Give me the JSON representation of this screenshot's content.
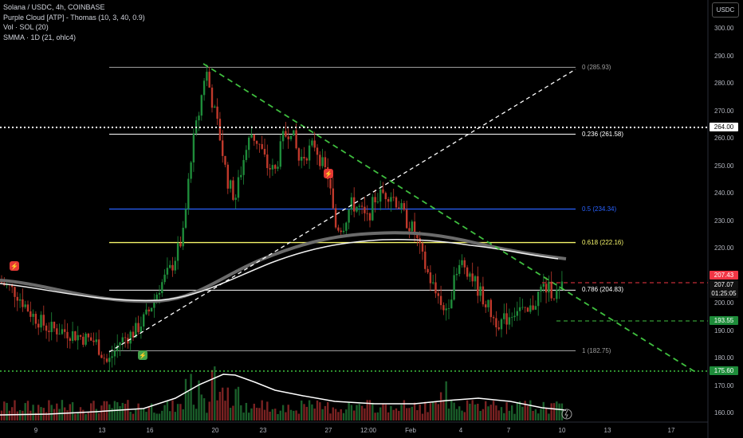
{
  "legend": {
    "symbol": "Solana / USDC, 4h, COINBASE",
    "indicator_purple_cloud": "Purple Cloud [ATP] - Thomas (10, 3, 40, 0.9)",
    "indicator_vol": "Vol · SOL (20)",
    "indicator_smma": "SMMA · 1D (21, ohlc4)"
  },
  "currency": "USDC",
  "price_axis": {
    "ticks": [
      "300.00",
      "290.00",
      "280.00",
      "270.00",
      "260.00",
      "250.00",
      "240.00",
      "230.00",
      "220.00",
      "210.00",
      "200.00",
      "190.00",
      "180.00",
      "170.00",
      "160.00"
    ]
  },
  "time_axis": {
    "ticks": [
      "9",
      "13",
      "16",
      "20",
      "23",
      "27",
      "12:00",
      "Feb",
      "4",
      "7",
      "10",
      "13",
      "17"
    ]
  },
  "fib_levels": [
    {
      "ratio_label": "0 (285.93)",
      "price": 285.93,
      "color": "#9e9e9e"
    },
    {
      "ratio_label": "0.236 (261.58)",
      "price": 261.58,
      "color": "#ffffff"
    },
    {
      "ratio_label": "0.5 (234.34)",
      "price": 234.34,
      "color": "#2962ff"
    },
    {
      "ratio_label": "0.618 (222.16)",
      "price": 222.16,
      "color": "#f5f56b"
    },
    {
      "ratio_label": "0.786 (204.83)",
      "price": 204.83,
      "color": "#ffffff"
    },
    {
      "ratio_label": "1 (182.75)",
      "price": 182.75,
      "color": "#9e9e9e"
    }
  ],
  "price_tags": {
    "level_264": "264.00",
    "current_red": "207.43",
    "current_price": "207.07",
    "countdown": "01:25:05",
    "level_193": "193.55",
    "level_175": "175.60"
  },
  "colors": {
    "background": "#000000",
    "up": "#1e8c3a",
    "down": "#c0392b",
    "green_dashed": "#3fbf3f",
    "red_dashed": "#f23645",
    "accent_green": "#4caf50"
  }
}
